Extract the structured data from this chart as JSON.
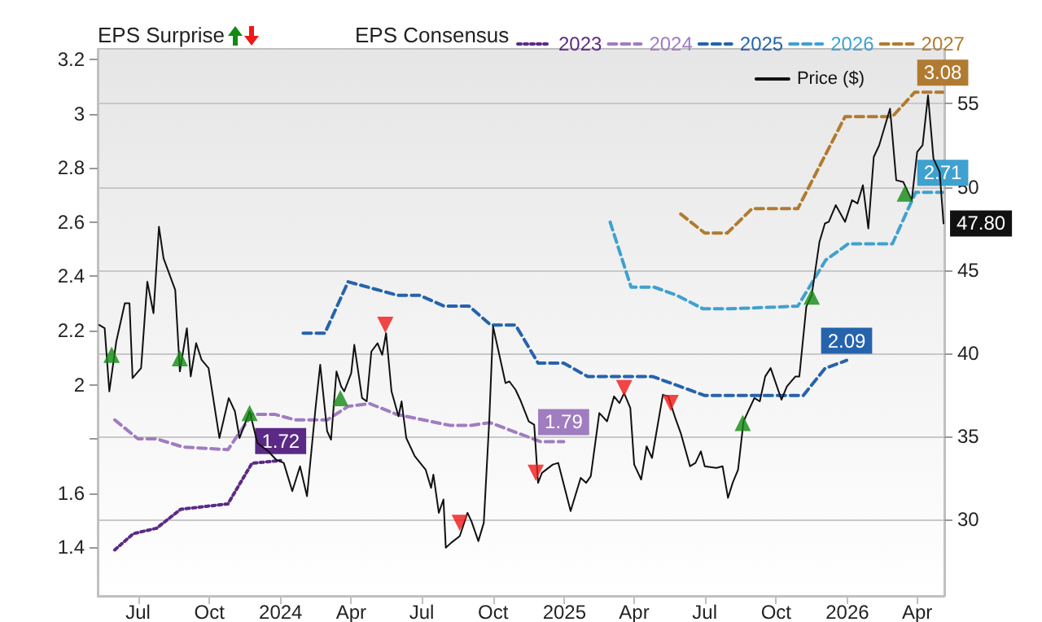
{
  "chart_data": {
    "type": "line",
    "legend_title": "EPS Consensus",
    "annotations": [
      "EPS Surprise"
    ],
    "xlim": [
      "2023-05-10",
      "2026-05-06"
    ],
    "xticks": [
      {
        "value": "2023-07-01",
        "label": "Jul"
      },
      {
        "value": "2023-10-01",
        "label": "Oct"
      },
      {
        "value": "2024-01-01",
        "label": "2024"
      },
      {
        "value": "2024-04-01",
        "label": "Apr"
      },
      {
        "value": "2024-07-01",
        "label": "Jul"
      },
      {
        "value": "2024-10-01",
        "label": "Oct"
      },
      {
        "value": "2025-01-01",
        "label": "2025"
      },
      {
        "value": "2025-04-01",
        "label": "Apr"
      },
      {
        "value": "2025-07-01",
        "label": "Jul"
      },
      {
        "value": "2025-10-01",
        "label": "Oct"
      },
      {
        "value": "2026-01-01",
        "label": "2026"
      },
      {
        "value": "2026-04-01",
        "label": "Apr"
      }
    ],
    "ylim": [
      1.22,
      3.24
    ],
    "yticks": [
      1.4,
      1.6,
      {
        "value": 1.8,
        "label": null
      },
      2,
      2.2,
      2.4,
      2.6,
      2.8,
      3,
      3.2
    ],
    "y2lim": [
      25.4,
      58.3
    ],
    "y2ticks": [
      30,
      35,
      40,
      45,
      50,
      55
    ],
    "grid": "y2",
    "legend": "top",
    "series": [
      {
        "name": "2023",
        "color": "#5b2a86",
        "line_style": "dotted",
        "x": [
          "2023-06-01",
          "2023-06-25",
          "2023-07-25",
          "2023-08-25",
          "2023-10-25",
          "2023-11-25",
          "2024-01-01"
        ],
        "values": [
          1.39,
          1.45,
          1.47,
          1.54,
          1.56,
          1.71,
          1.72
        ],
        "value_labels": [
          null,
          null,
          null,
          null,
          null,
          null,
          "1.72"
        ]
      },
      {
        "name": "2024",
        "color": "#a07cc0",
        "line_style": "dashed",
        "x": [
          "2023-06-01",
          "2023-07-01",
          "2023-07-25",
          "2023-08-28",
          "2023-10-25",
          "2023-11-25",
          "2023-12-25",
          "2024-01-20",
          "2024-03-01",
          "2024-03-28",
          "2024-04-25",
          "2024-05-30",
          "2024-07-03",
          "2024-08-06",
          "2024-09-03",
          "2024-09-27",
          "2024-12-01",
          "2024-12-31"
        ],
        "values": [
          1.87,
          1.8,
          1.8,
          1.77,
          1.76,
          1.89,
          1.89,
          1.87,
          1.87,
          1.92,
          1.93,
          1.89,
          1.87,
          1.85,
          1.85,
          1.86,
          1.79,
          1.79
        ],
        "value_labels": [
          null,
          null,
          null,
          null,
          null,
          null,
          null,
          null,
          null,
          null,
          null,
          null,
          null,
          null,
          null,
          null,
          null,
          "1.79"
        ]
      },
      {
        "name": "2025",
        "color": "#2563ad",
        "line_style": "dashed",
        "x": [
          "2024-01-30",
          "2024-02-27",
          "2024-03-28",
          "2024-05-31",
          "2024-06-28",
          "2024-07-30",
          "2024-08-31",
          "2024-09-28",
          "2024-10-30",
          "2024-11-28",
          "2024-12-31",
          "2025-01-31",
          "2025-03-10",
          "2025-04-25",
          "2025-07-01",
          "2025-08-20",
          "2025-11-05",
          "2025-12-03",
          "2025-12-31"
        ],
        "values": [
          2.19,
          2.19,
          2.38,
          2.33,
          2.33,
          2.29,
          2.29,
          2.22,
          2.22,
          2.08,
          2.08,
          2.03,
          2.03,
          2.03,
          1.96,
          1.96,
          1.96,
          2.06,
          2.09
        ],
        "value_labels": [
          null,
          null,
          null,
          null,
          null,
          null,
          null,
          null,
          null,
          null,
          null,
          null,
          null,
          null,
          null,
          null,
          null,
          null,
          "2.09"
        ]
      },
      {
        "name": "2026",
        "color": "#3fa1cf",
        "line_style": "dashed",
        "x": [
          "2025-03-01",
          "2025-03-28",
          "2025-04-27",
          "2025-05-26",
          "2025-06-29",
          "2025-07-31",
          "2025-10-29",
          "2025-12-04",
          "2026-01-02",
          "2026-02-28",
          "2026-03-30",
          "2026-05-04"
        ],
        "values": [
          2.6,
          2.36,
          2.36,
          2.33,
          2.28,
          2.28,
          2.29,
          2.46,
          2.52,
          2.52,
          2.71,
          2.71
        ],
        "value_labels": [
          null,
          null,
          null,
          null,
          null,
          null,
          null,
          null,
          null,
          null,
          null,
          "2.71"
        ]
      },
      {
        "name": "2027",
        "color": "#b07b30",
        "line_style": "dashed",
        "x": [
          "2025-05-31",
          "2025-07-01",
          "2025-07-30",
          "2025-08-31",
          "2025-10-29",
          "2025-12-29",
          "2026-02-28",
          "2026-03-29",
          "2026-05-04"
        ],
        "values": [
          2.63,
          2.56,
          2.56,
          2.65,
          2.65,
          2.99,
          2.99,
          3.08,
          3.08
        ],
        "value_labels": [
          null,
          null,
          null,
          null,
          null,
          null,
          null,
          null,
          "3.08"
        ]
      },
      {
        "name": "Price ($)",
        "color": "#111111",
        "line_style": "solid",
        "axis": "y2",
        "x": [
          "2023-05-12",
          "2023-05-19",
          "2023-05-25",
          "2023-06-03",
          "2023-06-14",
          "2023-06-20",
          "2023-06-24",
          "2023-07-05",
          "2023-07-13",
          "2023-07-21",
          "2023-07-28",
          "2023-08-03",
          "2023-08-18",
          "2023-08-24",
          "2023-09-02",
          "2023-09-07",
          "2023-09-14",
          "2023-09-21",
          "2023-09-30",
          "2023-10-14",
          "2023-10-26",
          "2023-11-03",
          "2023-11-09",
          "2023-11-22",
          "2023-12-02",
          "2023-12-16",
          "2023-12-26",
          "2024-01-05",
          "2024-01-16",
          "2024-01-26",
          "2024-02-04",
          "2024-02-15",
          "2024-02-21",
          "2024-03-01",
          "2024-03-06",
          "2024-03-13",
          "2024-03-19",
          "2024-03-23",
          "2024-04-01",
          "2024-04-05",
          "2024-04-15",
          "2024-04-21",
          "2024-04-27",
          "2024-05-05",
          "2024-05-11",
          "2024-05-16",
          "2024-05-23",
          "2024-06-01",
          "2024-06-05",
          "2024-06-11",
          "2024-06-22",
          "2024-07-06",
          "2024-07-13",
          "2024-07-16",
          "2024-07-23",
          "2024-07-29",
          "2024-08-01",
          "2024-08-08",
          "2024-08-19",
          "2024-08-29",
          "2024-09-03",
          "2024-09-12",
          "2024-09-19",
          "2024-09-26",
          "2024-10-01",
          "2024-10-10",
          "2024-10-17",
          "2024-10-22",
          "2024-10-30",
          "2024-11-05",
          "2024-11-16",
          "2024-11-23",
          "2024-11-28",
          "2024-12-03",
          "2024-12-17",
          "2024-12-24",
          "2025-01-09",
          "2025-01-22",
          "2025-01-29",
          "2025-02-04",
          "2025-02-15",
          "2025-02-25",
          "2025-03-06",
          "2025-03-13",
          "2025-03-19",
          "2025-03-27",
          "2025-04-01",
          "2025-04-10",
          "2025-04-17",
          "2025-04-24",
          "2025-05-08",
          "2025-05-15",
          "2025-05-24",
          "2025-05-31",
          "2025-06-12",
          "2025-06-19",
          "2025-06-26",
          "2025-07-01",
          "2025-07-16",
          "2025-07-24",
          "2025-07-31",
          "2025-08-06",
          "2025-08-13",
          "2025-08-20",
          "2025-09-03",
          "2025-09-10",
          "2025-09-17",
          "2025-09-24",
          "2025-10-08",
          "2025-10-15",
          "2025-10-26",
          "2025-10-31",
          "2025-11-09",
          "2025-11-16",
          "2025-11-26",
          "2025-12-03",
          "2025-12-08",
          "2025-12-17",
          "2025-12-29",
          "2026-01-07",
          "2026-01-14",
          "2026-01-21",
          "2026-01-28",
          "2026-02-04",
          "2026-02-11",
          "2026-02-25",
          "2026-03-05",
          "2026-03-14",
          "2026-03-25",
          "2026-04-01",
          "2026-04-08",
          "2026-04-15",
          "2026-04-22",
          "2026-04-30",
          "2026-05-05"
        ],
        "values": [
          41.7,
          41.5,
          37.7,
          40.7,
          43.0,
          43.0,
          38.5,
          39.1,
          44.3,
          42.4,
          47.6,
          45.7,
          43.8,
          38.9,
          41.5,
          38.6,
          40.6,
          39.6,
          39.1,
          34.9,
          37.3,
          36.5,
          34.9,
          36.5,
          34.6,
          34.1,
          33.6,
          33.4,
          31.7,
          33.2,
          31.4,
          36.7,
          39.3,
          35.3,
          34.8,
          38.9,
          38.0,
          37.7,
          38.8,
          40.5,
          37.3,
          37.1,
          40.1,
          40.6,
          39.9,
          41.2,
          37.7,
          36.2,
          37.1,
          34.9,
          33.8,
          33.0,
          31.9,
          32.7,
          30.4,
          31.2,
          28.3,
          28.6,
          29.0,
          30.4,
          29.9,
          28.7,
          29.8,
          35.9,
          41.6,
          39.7,
          38.2,
          38.3,
          37.8,
          37.2,
          35.9,
          35.7,
          32.2,
          32.8,
          33.3,
          33.4,
          30.5,
          32.5,
          32.2,
          32.6,
          36.4,
          35.9,
          37.4,
          37.0,
          37.6,
          36.7,
          33.3,
          32.4,
          34.4,
          33.7,
          37.5,
          37.4,
          36.1,
          35.2,
          33.2,
          33.4,
          34.1,
          33.2,
          33.1,
          33.2,
          31.3,
          32.2,
          33.0,
          35.9,
          37.3,
          37.1,
          38.6,
          39.1,
          37.2,
          38.0,
          38.6,
          38.6,
          42.8,
          43.5,
          46.7,
          47.8,
          47.9,
          48.9,
          47.9,
          49.2,
          49.0,
          50.1,
          47.5,
          51.8,
          52.5,
          54.7,
          50.4,
          50.3,
          49.2,
          52.1,
          52.5,
          55.5,
          51.7,
          50.9,
          47.8
        ],
        "value_labels": [
          null,
          null,
          null,
          null,
          null,
          null,
          null,
          null,
          null,
          null,
          null,
          null,
          null,
          null,
          null,
          null,
          null,
          null,
          null,
          null,
          null,
          null,
          null,
          null,
          null,
          null,
          null,
          null,
          null,
          null,
          null,
          null,
          null,
          null,
          null,
          null,
          null,
          null,
          null,
          null,
          null,
          null,
          null,
          null,
          null,
          null,
          null,
          null,
          null,
          null,
          null,
          null,
          null,
          null,
          null,
          null,
          null,
          null,
          null,
          null,
          null,
          null,
          null,
          null,
          null,
          null,
          null,
          null,
          null,
          null,
          null,
          null,
          null,
          null,
          null,
          null,
          null,
          null,
          null,
          null,
          null,
          null,
          null,
          null,
          null,
          null,
          null,
          null,
          null,
          null,
          null,
          null,
          null,
          null,
          null,
          null,
          null,
          null,
          null,
          null,
          null,
          null,
          null,
          null,
          null,
          null,
          null,
          null,
          null,
          null,
          null,
          null,
          null,
          null,
          null,
          null,
          null,
          null,
          null,
          null,
          null,
          null,
          null,
          null,
          null,
          null,
          null,
          null,
          null,
          null,
          null,
          null,
          null,
          null,
          "47.80"
        ]
      },
      {
        "type": "scatter",
        "color": "#138a13",
        "marker": "triangle",
        "axis": "y2",
        "x": [
          "2023-05-28",
          "2023-08-24",
          "2023-11-22",
          "2024-03-18",
          "2025-08-19",
          "2025-11-16",
          "2026-03-16"
        ],
        "values": [
          39.9,
          39.7,
          36.4,
          37.3,
          35.8,
          43.4,
          49.6
        ]
      },
      {
        "type": "scatter",
        "color": "#f01818",
        "marker": "triangle",
        "axis": "y2",
        "x": [
          "2024-05-15",
          "2024-08-19",
          "2024-11-25",
          "2025-03-19",
          "2025-05-18"
        ],
        "values": [
          41.7,
          29.8,
          32.8,
          37.9,
          37.0
        ]
      }
    ]
  }
}
